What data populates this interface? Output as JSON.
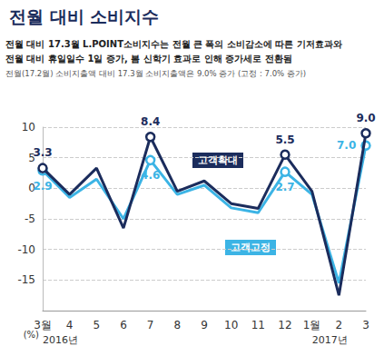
{
  "chart_data": {
    "type": "line",
    "title": "전월 대비 소비지수",
    "subtitle": [
      "전월 대비 17.3월 L.POINT소비지수는 전월 큰 폭의 소비감소에 따른 기저효과와",
      "전월 대비 휴일일수 1일 증가, 봄 신학기 효과로 인해 증가세로 전환됨"
    ],
    "note": "전월(17.2월) 소비지출액 대비 17.3월 소비지출액은 9.0% 증가 (고정 : 7.0% 증가)",
    "y_label": "(%)",
    "categories": [
      "3월",
      "4",
      "5",
      "6",
      "7",
      "8",
      "9",
      "10",
      "11",
      "12",
      "1월",
      "2",
      "3"
    ],
    "series": [
      {
        "name": "고객확대",
        "color": "#1b2c5c",
        "values": [
          3.3,
          -1,
          3.3,
          -6.5,
          8.4,
          -0.5,
          1.2,
          -2.5,
          -3.3,
          5.5,
          -0.5,
          -17.5,
          9.0
        ],
        "value_labels": [
          "3.3",
          null,
          null,
          null,
          "8.4",
          null,
          null,
          null,
          null,
          "5.5",
          null,
          null,
          "9.0"
        ]
      },
      {
        "name": "고객고정",
        "color": "#3cb4e5",
        "values": [
          2.9,
          -1.5,
          1.5,
          -5,
          4.6,
          -1,
          0.5,
          -3.2,
          -4,
          2.7,
          -1,
          -15.5,
          7.0
        ],
        "value_labels": [
          "2.9",
          null,
          null,
          null,
          "4.6",
          null,
          null,
          null,
          null,
          "2.7",
          null,
          null,
          "7.0"
        ]
      }
    ],
    "annotations": [
      {
        "text": "2016년",
        "category": "3월"
      },
      {
        "text": "2017년",
        "category": "1월"
      }
    ],
    "ylim": [
      -20,
      10
    ],
    "yticks": [
      -15,
      -10,
      -5,
      0,
      5,
      10
    ],
    "grid": true,
    "data_labels": true,
    "marker": "circle"
  }
}
